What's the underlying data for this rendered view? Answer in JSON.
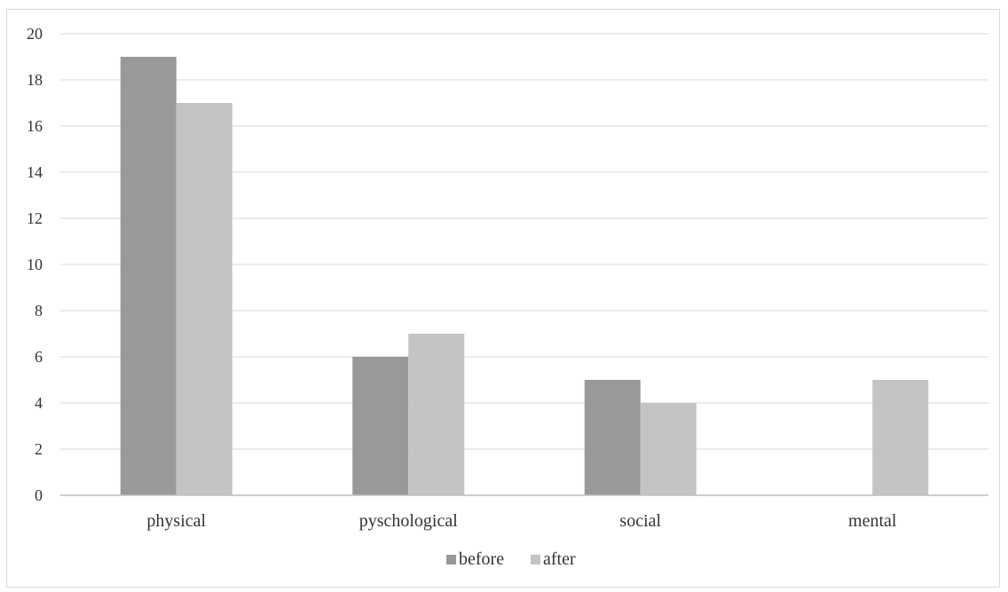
{
  "chart_data": {
    "type": "bar",
    "title": "",
    "xlabel": "",
    "ylabel": "",
    "categories": [
      "physical",
      "pyschological",
      "social",
      "mental"
    ],
    "series": [
      {
        "name": "before",
        "values": [
          19,
          6,
          5,
          0
        ],
        "color": "#999999"
      },
      {
        "name": "after",
        "values": [
          17,
          7,
          4,
          5
        ],
        "color": "#c4c4c4"
      }
    ],
    "ylim": [
      0,
      20
    ],
    "yticks": [
      0,
      2,
      4,
      6,
      8,
      10,
      12,
      14,
      16,
      18,
      20
    ],
    "grid": true,
    "legend_position": "bottom",
    "gridline_color": "#d9d9d9",
    "axis_color": "#bfbfbf"
  }
}
